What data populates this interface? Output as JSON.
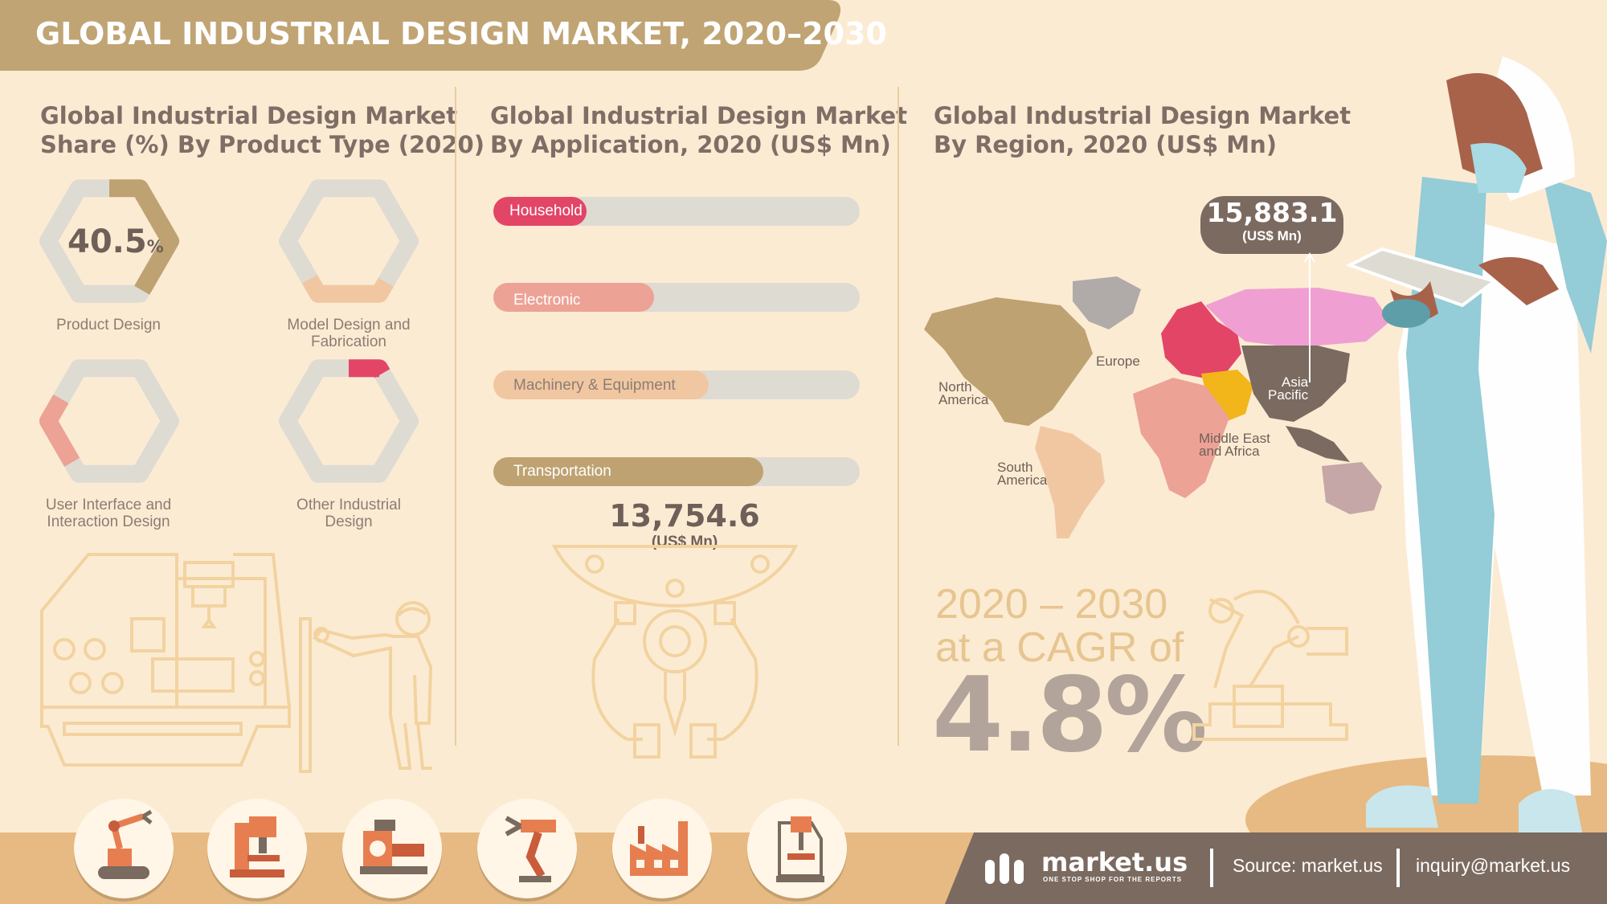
{
  "header": {
    "title": "GLOBAL INDUSTRIAL DESIGN MARKET, 2020–2030"
  },
  "section_product": {
    "title_line1": "Global Industrial Design Market",
    "title_line2": "Share (%) By Product Type (2020)"
  },
  "section_application": {
    "title_line1": "Global Industrial Design Market",
    "title_line2": "By Application, 2020 (US$ Mn)"
  },
  "section_region": {
    "title_line1": "Global Industrial Design Market",
    "title_line2": "By Region, 2020 (US$ Mn)"
  },
  "colors": {
    "banner": "#c0a474",
    "title_text": "#7e6e66",
    "hex_track": "#dedbd3",
    "bar_track": "#dedbd3",
    "footer": "#e6ba82",
    "footer_dark": "#7b6a60"
  },
  "chart_data": [
    {
      "type": "pie",
      "chart": "product_share",
      "categories": [
        {
          "label_line1": "Product Design",
          "label_line2": "",
          "share": 40.5,
          "value_text": "40.5",
          "unit": "%",
          "color": "#bfa271"
        },
        {
          "label_line1": "Model Design and",
          "label_line2": "Fabrication",
          "share": 25,
          "color": "#f1c7a2"
        },
        {
          "label_line1": "User Interface and",
          "label_line2": "Interaction Design",
          "share": 20,
          "color": "#eda296"
        },
        {
          "label_line1": "Other Industrial",
          "label_line2": "Design",
          "share": 10,
          "color": "#e34567"
        }
      ]
    },
    {
      "type": "bar",
      "chart": "application",
      "categories": [
        "Household",
        "Electronic",
        "Machinery & Equipment",
        "Transportation"
      ],
      "values": [
        1450,
        2500,
        3350,
        4200
      ],
      "colors": [
        "#e34567",
        "#eda296",
        "#f1c7a2",
        "#bfa271"
      ],
      "total": "13,754.6",
      "unit": "(US$ Mn)"
    },
    {
      "type": "map",
      "chart": "region",
      "highlight_value": "15,883.1",
      "highlight_unit": "(US$ Mn)",
      "regions": [
        {
          "line1": "North",
          "line2": "America",
          "color": "#bfa271"
        },
        {
          "line1": "South",
          "line2": "America",
          "color": "#f1c7a2"
        },
        {
          "line1": "Europe",
          "line2": "",
          "color": "#e34567"
        },
        {
          "line1": "Middle East",
          "line2": "and Africa",
          "color": "#eda296"
        },
        {
          "line1": "Asia",
          "line2": "Pacific",
          "color": "#7b6a60"
        }
      ]
    }
  ],
  "cagr": {
    "line1": "2020 – 2030",
    "line2": "at a CAGR of",
    "value": "4.8%"
  },
  "footer": {
    "brand": "market.us",
    "tagline": "ONE STOP SHOP FOR THE REPORTS",
    "source": "Source: market.us",
    "email": "inquiry@market.us"
  },
  "icons": [
    "robot-arm-icon",
    "milling-machine-icon",
    "lathe-icon",
    "robotic-gripper-icon",
    "factory-icon",
    "drill-press-icon"
  ]
}
